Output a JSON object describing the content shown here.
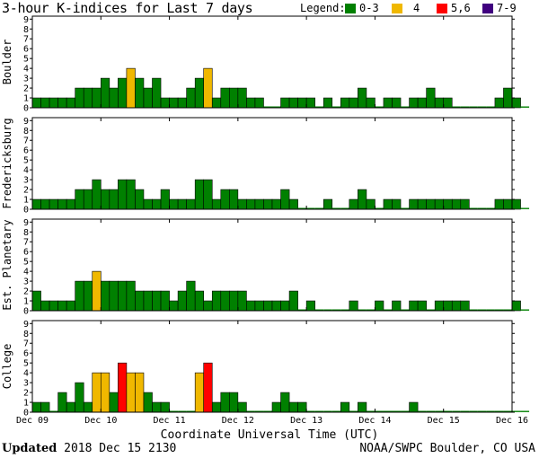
{
  "header": {
    "title": "3-hour K-indices for Last 7 days"
  },
  "legend": {
    "label": "Legend:",
    "items": [
      {
        "label": "0-3",
        "color": "#008000"
      },
      {
        "label": "4",
        "color": "#f0b800"
      },
      {
        "label": "5,6",
        "color": "#ff0000"
      },
      {
        "label": "7-9",
        "color": "#40007f"
      }
    ]
  },
  "footer": {
    "updated_label": "Updated",
    "updated_value": "2018 Dec 15 2130",
    "credit": "NOAA/SWPC Boulder, CO USA"
  },
  "chart_data": {
    "type": "bar",
    "xlabel": "Coordinate Universal Time (UTC)",
    "x_ticks": [
      "Dec 09",
      "Dec 10",
      "Dec 11",
      "Dec 12",
      "Dec 13",
      "Dec 14",
      "Dec 15",
      "Dec 16"
    ],
    "ylim": [
      0,
      9
    ],
    "y_ticks": [
      0,
      1,
      2,
      3,
      4,
      5,
      6,
      7,
      8,
      9
    ],
    "bins_per_day": 8,
    "color_thresholds": [
      {
        "max": 3,
        "color": "#008000"
      },
      {
        "max": 4,
        "color": "#f0b800"
      },
      {
        "max": 6,
        "color": "#ff0000"
      },
      {
        "max": 9,
        "color": "#40007f"
      }
    ],
    "series": [
      {
        "name": "Boulder",
        "values": [
          1,
          1,
          1,
          1,
          1,
          2,
          2,
          2,
          3,
          2,
          3,
          4,
          3,
          2,
          3,
          1,
          1,
          1,
          2,
          3,
          4,
          1,
          2,
          2,
          2,
          1,
          1,
          0,
          0,
          1,
          1,
          1,
          1,
          0,
          1,
          0,
          1,
          1,
          2,
          1,
          0,
          1,
          1,
          0,
          1,
          1,
          2,
          1,
          1,
          0,
          0,
          0,
          0,
          0,
          1,
          2,
          1,
          0
        ]
      },
      {
        "name": "Fredericksburg",
        "values": [
          1,
          1,
          1,
          1,
          1,
          2,
          2,
          3,
          2,
          2,
          3,
          3,
          2,
          1,
          1,
          2,
          1,
          1,
          1,
          3,
          3,
          1,
          2,
          2,
          1,
          1,
          1,
          1,
          1,
          2,
          1,
          0,
          0,
          0,
          1,
          0,
          0,
          1,
          2,
          1,
          0,
          1,
          1,
          0,
          1,
          1,
          1,
          1,
          1,
          1,
          1,
          0,
          0,
          0,
          1,
          1,
          1,
          0
        ]
      },
      {
        "name": "Est. Planetary",
        "values": [
          2,
          1,
          1,
          1,
          1,
          3,
          3,
          4,
          3,
          3,
          3,
          3,
          2,
          2,
          2,
          2,
          1,
          2,
          3,
          2,
          1,
          2,
          2,
          2,
          2,
          1,
          1,
          1,
          1,
          1,
          2,
          0,
          1,
          0,
          0,
          0,
          0,
          1,
          0,
          0,
          1,
          0,
          1,
          0,
          1,
          1,
          0,
          1,
          1,
          1,
          1,
          0,
          0,
          0,
          0,
          0,
          1,
          0
        ]
      },
      {
        "name": "College",
        "values": [
          1,
          1,
          0,
          2,
          1,
          3,
          1,
          4,
          4,
          2,
          5,
          4,
          4,
          2,
          1,
          1,
          0,
          0,
          0,
          4,
          5,
          1,
          2,
          2,
          1,
          0,
          0,
          0,
          1,
          2,
          1,
          1,
          0,
          0,
          0,
          0,
          1,
          0,
          1,
          0,
          0,
          0,
          0,
          0,
          1,
          0,
          0,
          0,
          0,
          0,
          0,
          0,
          0,
          0,
          0,
          0,
          0,
          0
        ]
      }
    ]
  }
}
